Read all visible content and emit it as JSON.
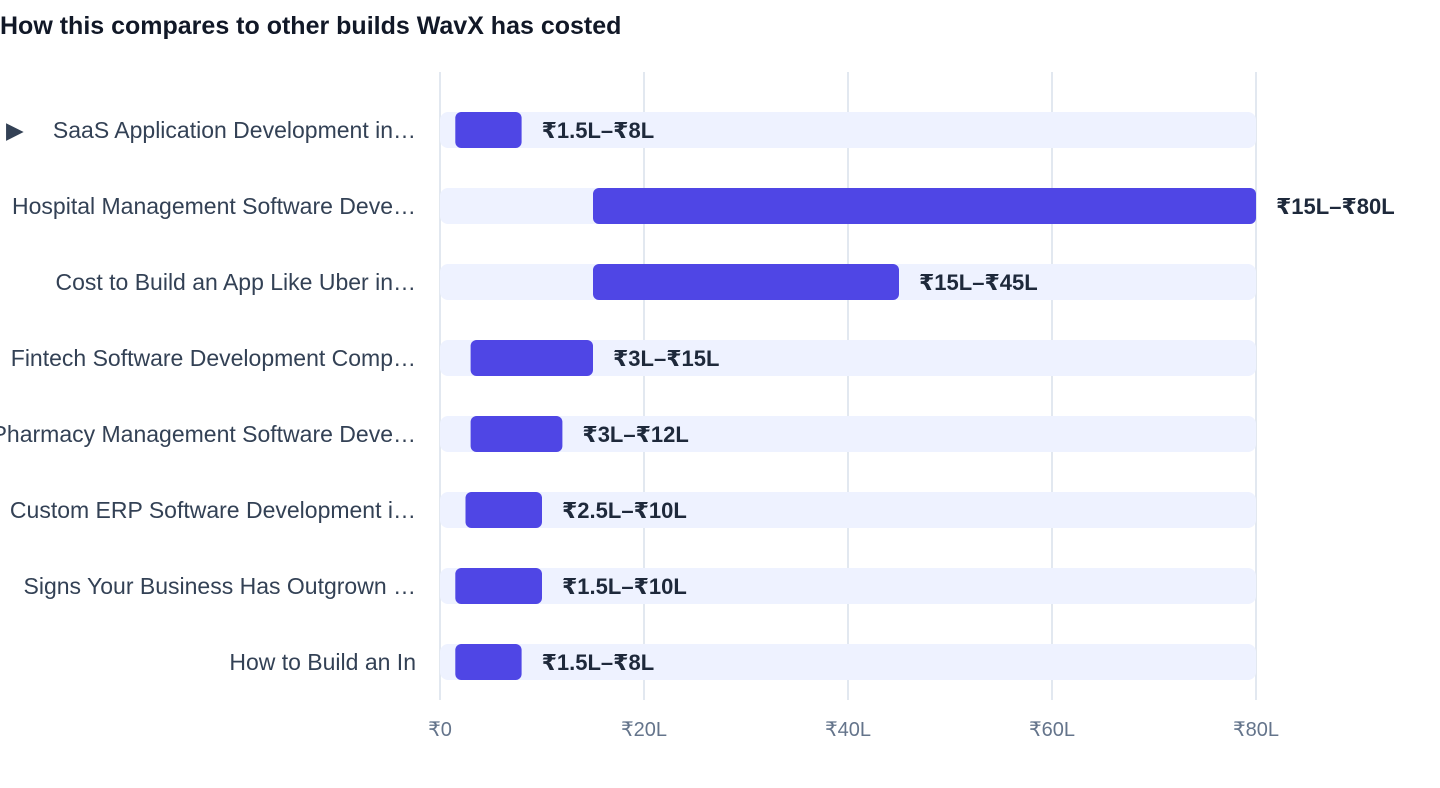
{
  "title": "How this compares to other builds WavX has costed",
  "colors": {
    "bar": "#4f46e5",
    "track": "#eef2ff",
    "grid": "#e2e8f0",
    "label": "#334155"
  },
  "chart_data": {
    "type": "bar",
    "orientation": "horizontal",
    "title": "How this compares to other builds WavX has costed",
    "xlabel": "",
    "ylabel": "",
    "xlim": [
      0,
      80
    ],
    "unit": "₹ lakh",
    "grid": true,
    "x_ticks": [
      {
        "value": 0,
        "label": "₹0"
      },
      {
        "value": 20,
        "label": "₹20L"
      },
      {
        "value": 40,
        "label": "₹40L"
      },
      {
        "value": 60,
        "label": "₹60L"
      },
      {
        "value": 80,
        "label": "₹80L"
      }
    ],
    "bars": [
      {
        "label": "SaaS Application Development in…",
        "marker": "▶",
        "min": 1.5,
        "max": 8,
        "value_label": "₹1.5L–₹8L"
      },
      {
        "label": "Hospital Management Software Deve…",
        "min": 15,
        "max": 80,
        "value_label": "₹15L–₹80L"
      },
      {
        "label": "Cost to Build an App Like Uber in…",
        "min": 15,
        "max": 45,
        "value_label": "₹15L–₹45L"
      },
      {
        "label": "Fintech Software Development Comp…",
        "min": 3,
        "max": 15,
        "value_label": "₹3L–₹15L"
      },
      {
        "label": "Pharmacy Management Software Deve…",
        "min": 3,
        "max": 12,
        "value_label": "₹3L–₹12L"
      },
      {
        "label": "Custom ERP Software Development i…",
        "min": 2.5,
        "max": 10,
        "value_label": "₹2.5L–₹10L"
      },
      {
        "label": "Signs Your Business Has Outgrown …",
        "min": 1.5,
        "max": 10,
        "value_label": "₹1.5L–₹10L"
      },
      {
        "label": "How to Build an In",
        "min": 1.5,
        "max": 8,
        "value_label": "₹1.5L–₹8L"
      }
    ]
  }
}
